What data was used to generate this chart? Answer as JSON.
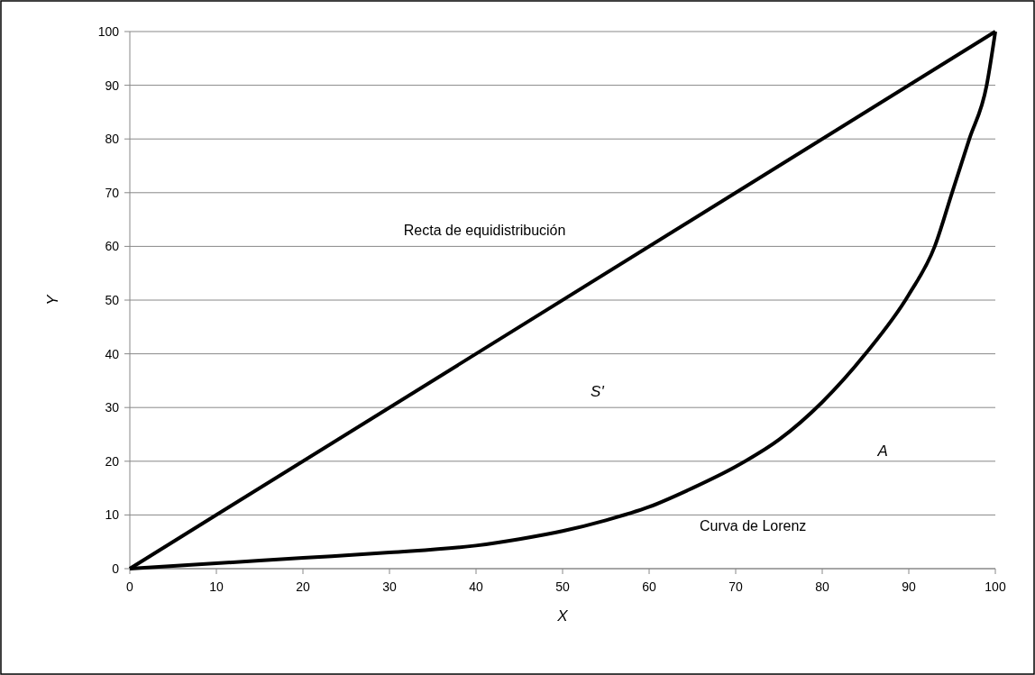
{
  "chart_data": {
    "type": "line",
    "xlabel": "X",
    "ylabel": "Y",
    "xlim": [
      0,
      100
    ],
    "ylim": [
      0,
      100
    ],
    "xticks": [
      0,
      10,
      20,
      30,
      40,
      50,
      60,
      70,
      80,
      90,
      100
    ],
    "yticks": [
      0,
      10,
      20,
      30,
      40,
      50,
      60,
      70,
      80,
      90,
      100
    ],
    "grid": "y",
    "marker": "none",
    "line_style": "solid",
    "series": [
      {
        "color": "#000000",
        "x": [
          0,
          100
        ],
        "values": [
          0,
          100
        ]
      },
      {
        "color": "#000000",
        "x": [
          0,
          10,
          20,
          30,
          40,
          45,
          50,
          55,
          60,
          65,
          70,
          75,
          80,
          85,
          90,
          93,
          95,
          97,
          99,
          100
        ],
        "values": [
          0,
          1,
          2,
          3,
          4.3,
          5.5,
          7,
          9,
          11.5,
          15,
          19,
          24,
          31,
          40,
          51,
          60,
          70,
          80,
          90,
          100
        ]
      }
    ],
    "annotations": [
      "Recta de equidistribución",
      "S'",
      "A",
      "Curva de Lorenz"
    ]
  }
}
